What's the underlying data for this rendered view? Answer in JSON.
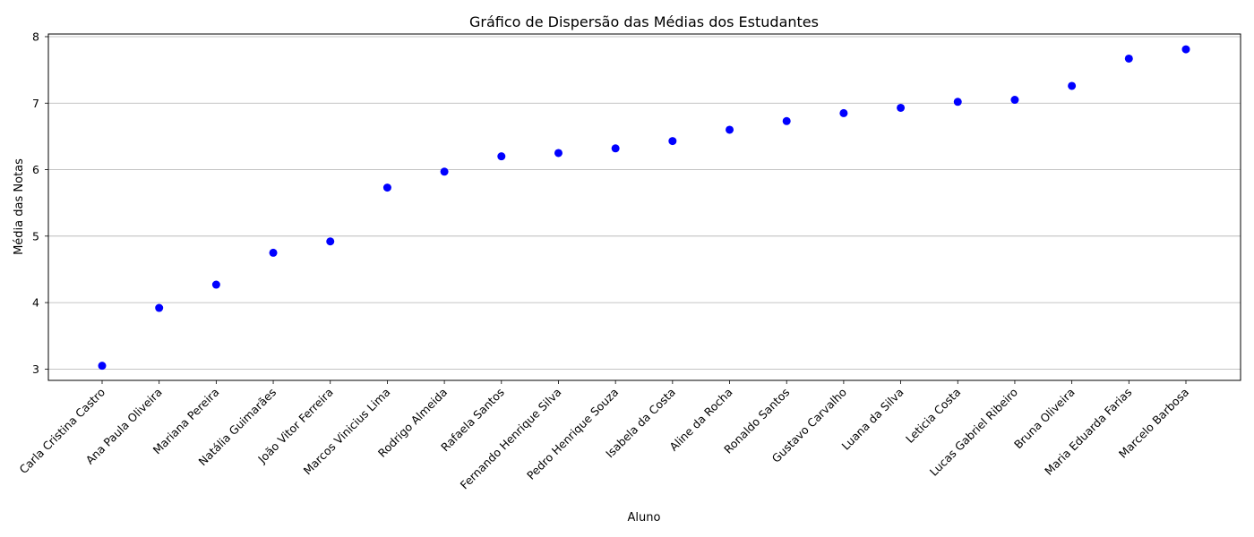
{
  "chart_data": {
    "type": "scatter",
    "title": "Gráfico de Dispersão das Médias dos Estudantes",
    "xlabel": "Aluno",
    "ylabel": "Média das Notas",
    "categories": [
      "Carla Cristina Castro",
      "Ana Paula Oliveira",
      "Mariana Pereira",
      "Natália Guimarães",
      "João Vitor Ferreira",
      "Marcos Vinicius Lima",
      "Rodrigo Almeida",
      "Rafaela Santos",
      "Fernando Henrique Silva",
      "Pedro Henrique Souza",
      "Isabela da Costa",
      "Aline da Rocha",
      "Ronaldo Santos",
      "Gustavo Carvalho",
      "Luana da Silva",
      "Leticia Costa",
      "Lucas Gabriel Ribeiro",
      "Bruna Oliveira",
      "Maria Eduarda Farias",
      "Marcelo Barbosa"
    ],
    "values": [
      3.05,
      3.92,
      4.27,
      4.75,
      4.92,
      5.73,
      5.97,
      6.2,
      6.25,
      6.32,
      6.43,
      6.6,
      6.73,
      6.85,
      6.93,
      7.02,
      7.05,
      7.26,
      7.67,
      7.81
    ],
    "ylim": [
      2.83,
      8.04
    ],
    "yticks": [
      3,
      4,
      5,
      6,
      7,
      8
    ],
    "grid": "y",
    "marker_color": "#0000ff"
  }
}
